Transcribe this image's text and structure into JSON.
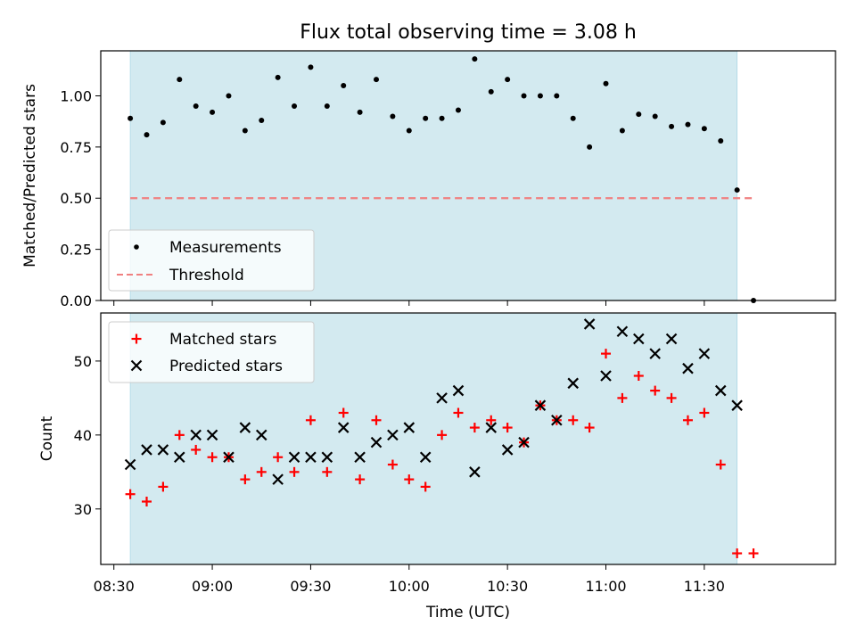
{
  "chart_data": [
    {
      "type": "scatter",
      "title": "Flux total observing time = 3.08 h",
      "ylabel": "Matched/Predicted stars",
      "ylim": [
        0,
        1.22
      ],
      "xlim": [
        "08:26",
        "12:10"
      ],
      "shaded_range": [
        "08:35",
        "11:40"
      ],
      "legend_position": "lower-left",
      "yticks": [
        "0.00",
        "0.25",
        "0.50",
        "0.75",
        "1.00"
      ],
      "series": [
        {
          "name": "Measurements",
          "marker": "dot",
          "color": "#000000",
          "x": [
            "08:35",
            "08:40",
            "08:45",
            "08:50",
            "08:55",
            "09:00",
            "09:05",
            "09:10",
            "09:15",
            "09:20",
            "09:25",
            "09:30",
            "09:35",
            "09:40",
            "09:45",
            "09:50",
            "09:55",
            "10:00",
            "10:05",
            "10:10",
            "10:15",
            "10:20",
            "10:25",
            "10:30",
            "10:35",
            "10:40",
            "10:45",
            "10:50",
            "10:55",
            "11:00",
            "11:05",
            "11:10",
            "11:15",
            "11:20",
            "11:25",
            "11:30",
            "11:35",
            "11:40",
            "11:45"
          ],
          "y": [
            0.89,
            0.81,
            0.87,
            1.08,
            0.95,
            0.92,
            1.0,
            0.83,
            0.88,
            1.09,
            0.95,
            1.14,
            0.95,
            1.05,
            0.92,
            1.08,
            0.9,
            0.83,
            0.89,
            0.89,
            0.93,
            1.18,
            1.02,
            1.08,
            1.0,
            1.0,
            1.0,
            0.89,
            0.75,
            1.06,
            0.83,
            0.91,
            0.9,
            0.85,
            0.86,
            0.84,
            0.78,
            0.54,
            0.0
          ]
        },
        {
          "name": "Threshold",
          "marker": "dashed-line",
          "color": "#f08080",
          "x": [
            "08:35",
            "11:45"
          ],
          "y": [
            0.5,
            0.5
          ]
        }
      ]
    },
    {
      "type": "scatter",
      "xlabel": "Time (UTC)",
      "ylabel": "Count",
      "ylim": [
        22.5,
        56.5
      ],
      "xlim": [
        "08:26",
        "12:10"
      ],
      "shaded_range": [
        "08:35",
        "11:40"
      ],
      "legend_position": "upper-left",
      "yticks": [
        "30",
        "40",
        "50"
      ],
      "xticks": [
        "08:30",
        "09:00",
        "09:30",
        "10:00",
        "10:30",
        "11:00",
        "11:30"
      ],
      "series": [
        {
          "name": "Matched stars",
          "marker": "plus",
          "color": "#ff0000",
          "x": [
            "08:35",
            "08:40",
            "08:45",
            "08:50",
            "08:55",
            "09:00",
            "09:05",
            "09:10",
            "09:15",
            "09:20",
            "09:25",
            "09:30",
            "09:35",
            "09:40",
            "09:45",
            "09:50",
            "09:55",
            "10:00",
            "10:05",
            "10:10",
            "10:15",
            "10:20",
            "10:25",
            "10:30",
            "10:35",
            "10:40",
            "10:45",
            "10:50",
            "10:55",
            "11:00",
            "11:05",
            "11:10",
            "11:15",
            "11:20",
            "11:25",
            "11:30",
            "11:35",
            "11:40",
            "11:45"
          ],
          "y": [
            32,
            31,
            33,
            40,
            38,
            37,
            37,
            34,
            35,
            37,
            35,
            42,
            35,
            43,
            34,
            42,
            36,
            34,
            33,
            40,
            43,
            41,
            42,
            41,
            39,
            44,
            42,
            42,
            41,
            51,
            45,
            48,
            46,
            45,
            42,
            43,
            36,
            24,
            24
          ]
        },
        {
          "name": "Predicted stars",
          "marker": "x",
          "color": "#000000",
          "x": [
            "08:35",
            "08:40",
            "08:45",
            "08:50",
            "08:55",
            "09:00",
            "09:05",
            "09:10",
            "09:15",
            "09:20",
            "09:25",
            "09:30",
            "09:35",
            "09:40",
            "09:45",
            "09:50",
            "09:55",
            "10:00",
            "10:05",
            "10:10",
            "10:15",
            "10:20",
            "10:25",
            "10:30",
            "10:35",
            "10:40",
            "10:45",
            "10:50",
            "10:55",
            "11:00",
            "11:05",
            "11:10",
            "11:15",
            "11:20",
            "11:25",
            "11:30",
            "11:35",
            "11:40"
          ],
          "y": [
            36,
            38,
            38,
            37,
            40,
            40,
            37,
            41,
            40,
            34,
            37,
            37,
            37,
            41,
            37,
            39,
            40,
            41,
            37,
            45,
            46,
            35,
            41,
            38,
            39,
            44,
            42,
            47,
            55,
            48,
            54,
            53,
            51,
            53,
            49,
            51,
            46,
            44
          ]
        }
      ]
    }
  ],
  "colors": {
    "shade": "#d3eaf0",
    "shade_edge": "#add8e6"
  }
}
